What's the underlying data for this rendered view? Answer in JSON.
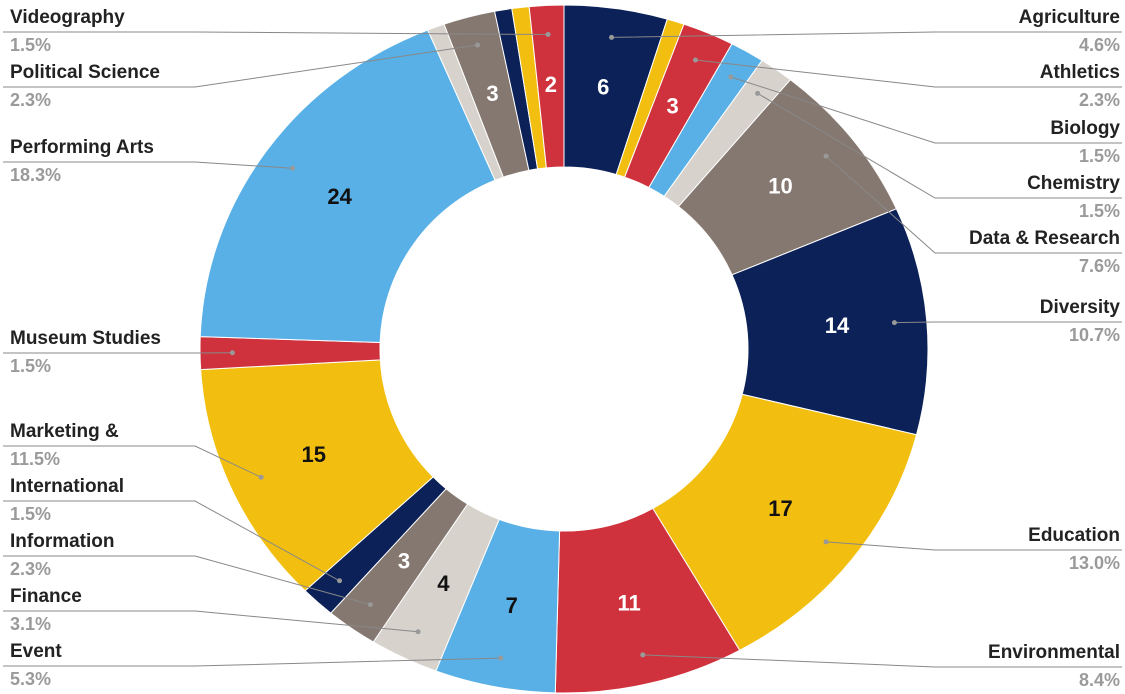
{
  "chart_data": {
    "type": "donut",
    "categories": [
      "Agriculture",
      null,
      "Athletics",
      "Biology",
      "Chemistry",
      "Data & Research",
      "Diversity",
      "Education",
      "Environmental",
      "Event",
      "Finance",
      "Information",
      "International",
      "Marketing &",
      "Museum Studies",
      "Performing Arts",
      null,
      "Political Science",
      null,
      null,
      "Videography"
    ],
    "values": [
      6,
      1,
      3,
      2,
      2,
      10,
      14,
      17,
      11,
      7,
      4,
      3,
      2,
      15,
      2,
      24,
      1,
      3,
      1,
      1,
      2
    ],
    "value_labels": [
      "6",
      null,
      "3",
      null,
      null,
      "10",
      "14",
      "17",
      "11",
      "7",
      "4",
      "3",
      null,
      "15",
      null,
      "24",
      null,
      "3",
      null,
      null,
      "2"
    ],
    "percent_labels": [
      "4.6%",
      null,
      "2.3%",
      "1.5%",
      "1.5%",
      "7.6%",
      "10.7%",
      "13.0%",
      "8.4%",
      "5.3%",
      "3.1%",
      "2.3%",
      "1.5%",
      "11.5%",
      "1.5%",
      "18.3%",
      null,
      "2.3%",
      null,
      null,
      "1.5%"
    ],
    "colors": [
      "#0b2158",
      "#f2bf10",
      "#d0323d",
      "#59b0e6",
      "#d7d2cc",
      "#857870"
    ]
  }
}
